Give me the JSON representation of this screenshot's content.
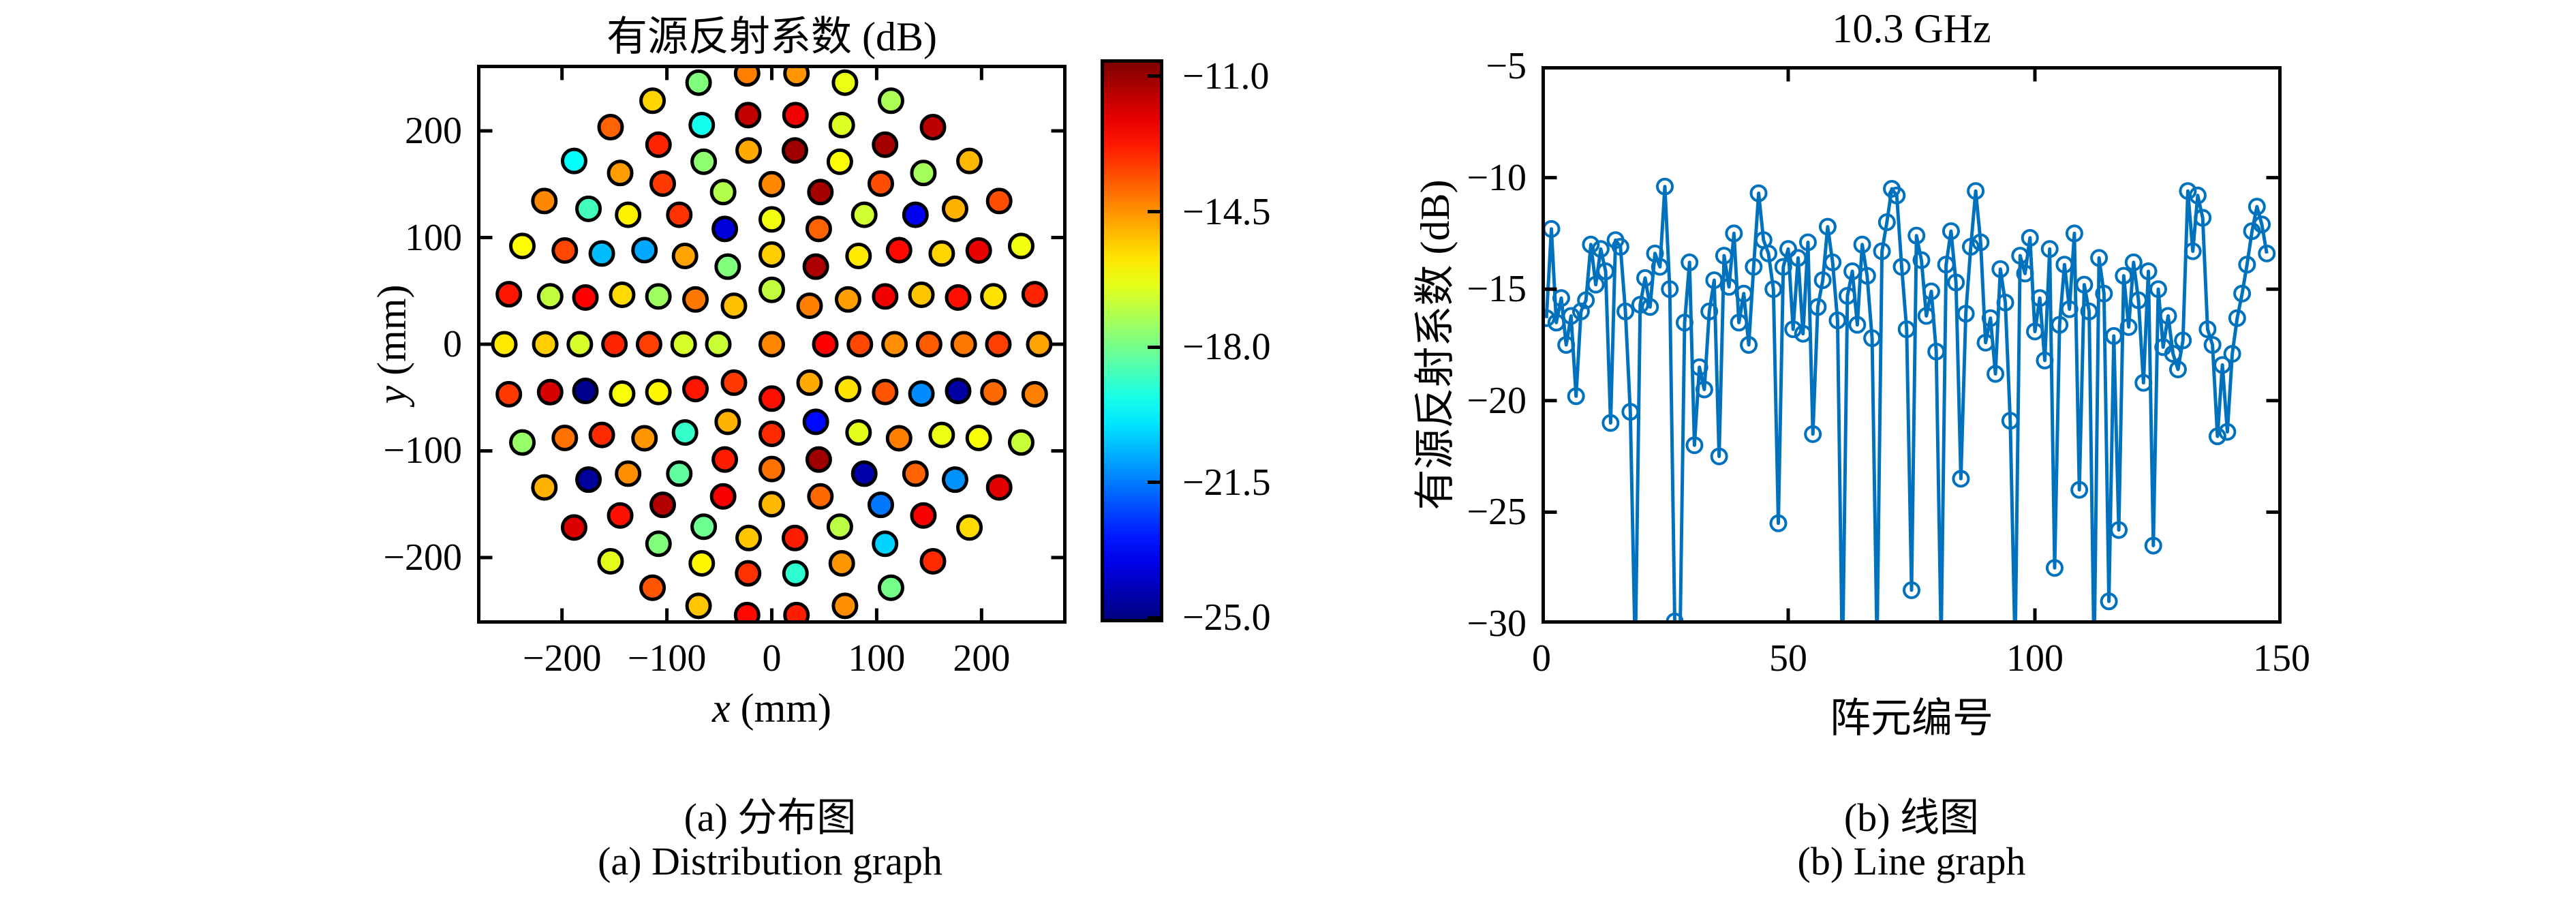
{
  "captions": {
    "a_zh": "(a) 分布图",
    "a_en": "(a) Distribution graph",
    "b_zh": "(b) 线图",
    "b_en": "(b) Line graph"
  },
  "chart_data": [
    {
      "type": "scatter",
      "title": "有源反射系数 (dB)",
      "xlabel_var": "x",
      "xlabel_unit": " (mm)",
      "ylabel_var": "y",
      "ylabel_unit": " (mm)",
      "xlim": [
        -281,
        281
      ],
      "ylim": [
        -262,
        262
      ],
      "x_ticks": [
        -200,
        -100,
        0,
        100,
        200
      ],
      "x_tick_labels": [
        "−200",
        "−100",
        "0",
        "100",
        "200"
      ],
      "y_ticks": [
        200,
        100,
        0,
        -100,
        -200
      ],
      "y_tick_labels": [
        "200",
        "100",
        "0",
        "−100",
        "−200"
      ],
      "grid": false,
      "marker": {
        "shape": "circle",
        "radius_px": 17,
        "edge_color": "#000000",
        "edge_width": 5
      },
      "colormap": "jet",
      "colorbar": {
        "vmin": -25.12,
        "vmax": -10.56,
        "ticks": [
          -11.0,
          -14.5,
          -18.0,
          -21.5,
          -25.0
        ],
        "tick_labels": [
          "−11.0",
          "−14.5",
          "−18.0",
          "−21.5",
          "−25.0"
        ]
      },
      "layout": "concentric-rings",
      "center_element": {
        "x": 0,
        "y": 0,
        "value": -14.3
      },
      "rings": [
        {
          "r": 51,
          "n": 8,
          "start_deg": 0,
          "values": [
            -12.4,
            -14.2,
            -16.9,
            -15.1,
            -16.8,
            -13.2,
            -12.6,
            -14.8
          ]
        },
        {
          "r": 84,
          "n": 12,
          "start_deg": 0,
          "values": [
            -13.4,
            -14.6,
            -11.2,
            -15.3,
            -17.8,
            -14.1,
            -16.6,
            -12.7,
            -14.9,
            -13.0,
            -23.2,
            -15.6
          ]
        },
        {
          "r": 117,
          "n": 16,
          "start_deg": 0,
          "values": [
            -14.4,
            -12.2,
            -15.7,
            -13.8,
            -16.2,
            -23.8,
            -14.7,
            -17.4,
            -13.3,
            -15.9,
            -18.9,
            -12.8,
            -14.0,
            -11.0,
            -16.4,
            -13.6
          ]
        },
        {
          "r": 150,
          "n": 20,
          "start_deg": 0,
          "values": [
            -13.7,
            -15.2,
            -12.5,
            -16.7,
            -11.1,
            -14.3,
            -17.1,
            -13.1,
            -20.9,
            -15.5,
            -12.9,
            -16.1,
            -14.5,
            -18.3,
            -12.3,
            -15.0,
            -13.9,
            -24.5,
            -14.2,
            -21.3
          ]
        },
        {
          "r": 183,
          "n": 26,
          "start_deg": 0,
          "values": [
            -14.1,
            -12.6,
            -15.4,
            -23.5,
            -13.5,
            -16.0,
            -11.0,
            -14.8,
            -17.6,
            -13.2,
            -15.8,
            -20.6,
            -12.4,
            -16.6,
            -24.9,
            -13.0,
            -14.4,
            -11.3,
            -18.1,
            -15.2,
            -12.8,
            -17.0,
            -21.6,
            -13.8,
            -16.3,
            -24.6
          ]
        },
        {
          "r": 216,
          "n": 30,
          "start_deg": 0,
          "values": [
            -13.3,
            -15.6,
            -12.1,
            -14.9,
            -17.3,
            -11.1,
            -16.5,
            -12.2,
            -11.5,
            -19.4,
            -12.9,
            -14.6,
            -18.7,
            -13.4,
            -16.9,
            -15.3,
            -11.8,
            -14.0,
            -24.7,
            -12.6,
            -17.8,
            -15.9,
            -13.1,
            -19.0,
            -14.5,
            -20.3,
            -12.3,
            -21.2,
            -16.1,
            -13.9
          ]
        },
        {
          "r": 255,
          "n": 34,
          "start_deg": 0,
          "values": [
            -14.7,
            -12.9,
            -16.2,
            -13.5,
            -15.0,
            -11.4,
            -17.2,
            -16.3,
            -14.5,
            -14.2,
            -17.8,
            -15.4,
            -13.8,
            -19.6,
            -14.3,
            -16.0,
            -12.7,
            -15.7,
            -13.2,
            -17.5,
            -14.9,
            -11.9,
            -16.4,
            -13.6,
            -15.2,
            -12.5,
            -12.8,
            -14.4,
            -18.0,
            -13.0,
            -15.5,
            -12.0,
            -16.8,
            -14.2
          ]
        }
      ]
    },
    {
      "type": "line",
      "title": "10.3 GHz",
      "xlabel": "阵元编号",
      "ylabel": "有源反射系数 (dB)",
      "xlim": [
        0,
        150
      ],
      "ylim": [
        -30,
        -5
      ],
      "x_ticks": [
        0,
        50,
        100,
        150
      ],
      "x_tick_labels": [
        "0",
        "50",
        "100",
        "150"
      ],
      "y_ticks": [
        -5,
        -10,
        -15,
        -20,
        -25,
        -30
      ],
      "y_tick_labels": [
        "−5",
        "−10",
        "−15",
        "−20",
        "−25",
        "−30"
      ],
      "grid": false,
      "line_color": "#0072BD",
      "line_width": 5,
      "marker": {
        "shape": "open-circle",
        "radius_px": 11,
        "edge_width": 4
      },
      "x_start": 1,
      "x_step": 1,
      "values": [
        -16.3,
        -12.3,
        -16.5,
        -15.4,
        -17.5,
        -16.2,
        -19.8,
        -16.0,
        -15.5,
        -13.0,
        -14.8,
        -13.2,
        -14.2,
        -21.0,
        -12.8,
        -13.1,
        -16.0,
        -20.5,
        -31.5,
        -15.7,
        -14.5,
        -15.8,
        -13.4,
        -14.0,
        -10.4,
        -15.0,
        -29.9,
        -31.8,
        -16.5,
        -13.8,
        -22.0,
        -18.5,
        -19.5,
        -16.0,
        -14.6,
        -22.5,
        -13.5,
        -14.9,
        -12.5,
        -16.5,
        -15.2,
        -17.5,
        -14.0,
        -10.7,
        -12.8,
        -13.4,
        -15.0,
        -25.5,
        -14.0,
        -13.2,
        -16.8,
        -13.6,
        -17.0,
        -12.9,
        -21.5,
        -15.8,
        -14.6,
        -12.2,
        -13.8,
        -16.4,
        -32.0,
        -15.3,
        -14.2,
        -16.6,
        -13.0,
        -14.4,
        -17.2,
        -31.0,
        -13.3,
        -12.0,
        -10.5,
        -10.8,
        -14.0,
        -16.8,
        -28.5,
        -12.6,
        -13.7,
        -16.2,
        -15.1,
        -17.8,
        -30.8,
        -13.9,
        -12.4,
        -14.7,
        -23.5,
        -16.1,
        -13.1,
        -10.6,
        -12.9,
        -17.4,
        -16.3,
        -18.8,
        -14.1,
        -15.6,
        -20.9,
        -31.2,
        -13.5,
        -14.3,
        -12.7,
        -16.9,
        -15.4,
        -18.2,
        -13.2,
        -27.5,
        -16.6,
        -13.9,
        -15.9,
        -12.5,
        -24.0,
        -14.8,
        -16.0,
        -31.6,
        -13.6,
        -15.2,
        -29.0,
        -17.1,
        -25.8,
        -14.4,
        -16.7,
        -13.8,
        -15.5,
        -19.2,
        -14.2,
        -26.5,
        -15.0,
        -17.6,
        -16.2,
        -17.9,
        -18.6,
        -17.3,
        -10.6,
        -13.3,
        -10.8,
        -11.8,
        -16.8,
        -17.5,
        -21.6,
        -18.4,
        -21.4,
        -17.9,
        -16.3,
        -15.2,
        -13.9,
        -12.4,
        -11.3,
        -12.1,
        -13.4
      ]
    }
  ]
}
